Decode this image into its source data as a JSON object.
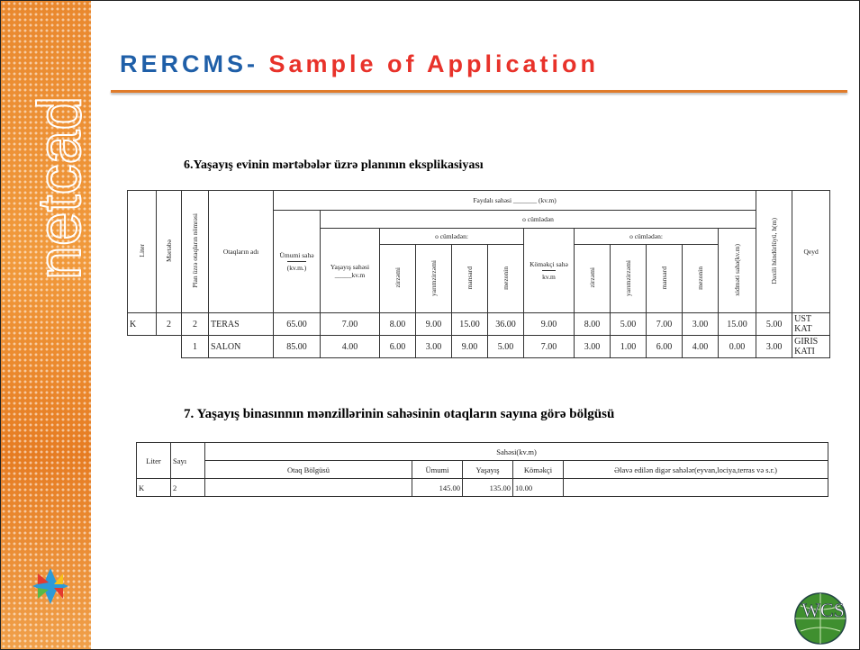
{
  "slide": {
    "title_prefix": "RERCMS-",
    "title_rest": "Sample of Application",
    "sidebar_logo": "netcad",
    "corner_logo": "WCS"
  },
  "section1": {
    "heading": "6.Yaşayış evinin mərtəbələr üzrə planının eksplikasiyası",
    "table": {
      "headers": {
        "liter": "Liter",
        "floor": "Mərtəbə",
        "room_no": "Plan üzrə otaqların nömrəsi",
        "room_name": "Otaqların adı",
        "useful": "Faydalı sahəsi _______ (kv.m)",
        "total": "Ümumi sahə",
        "total_unit": "(kv.m.)",
        "including": "o cümlədən",
        "living_including": "o cümlədən:",
        "living": "Yaşayış sahəsi",
        "living_unit": "kv.m",
        "living_sub": [
          "zirzəmi",
          "yarımzirzəmi",
          "mansard",
          "mezonin"
        ],
        "aux_including": "o cümlədən:",
        "aux": "Köməkçi sahə",
        "aux_unit": "kv.m",
        "aux_sub": [
          "zirzəmi",
          "yarımzirzəmi",
          "mansard",
          "mezonin"
        ],
        "service": "xidməti sahə(kv.m)",
        "height": "Daxili hündürlüyü, h(m)",
        "note": "Qeyd"
      },
      "rows": [
        [
          "K",
          "2",
          "2",
          "TERAS",
          "65.00",
          "7.00",
          "8.00",
          "9.00",
          "15.00",
          "36.00",
          "9.00",
          "8.00",
          "5.00",
          "7.00",
          "3.00",
          "15.00",
          "5.00",
          "UST KAT"
        ],
        [
          "1",
          "SALON",
          "85.00",
          "4.00",
          "6.00",
          "3.00",
          "9.00",
          "5.00",
          "7.00",
          "3.00",
          "1.00",
          "6.00",
          "4.00",
          "0.00",
          "3.00",
          "GIRIS KATI"
        ]
      ]
    }
  },
  "section2": {
    "heading": "7. Yaşayış binasınnın mənzillərinin sahəsinin otaqların sayına görə bölgüsü",
    "table": {
      "headers": {
        "liter": "Liter",
        "count": "Sayı",
        "area": "Sahəsi(kv.m)",
        "distribution": "Otaq Bölgüsü",
        "total": "Ümumi",
        "living": "Yaşayış",
        "aux": "Köməkçi",
        "extra": "Əlavə edilən digər sahələr(eyvan,lociya,terras və s.r.)"
      },
      "row": {
        "liter": "K",
        "count": "2",
        "total": "145.00",
        "living": "135.00",
        "aux": "10.00"
      }
    }
  }
}
